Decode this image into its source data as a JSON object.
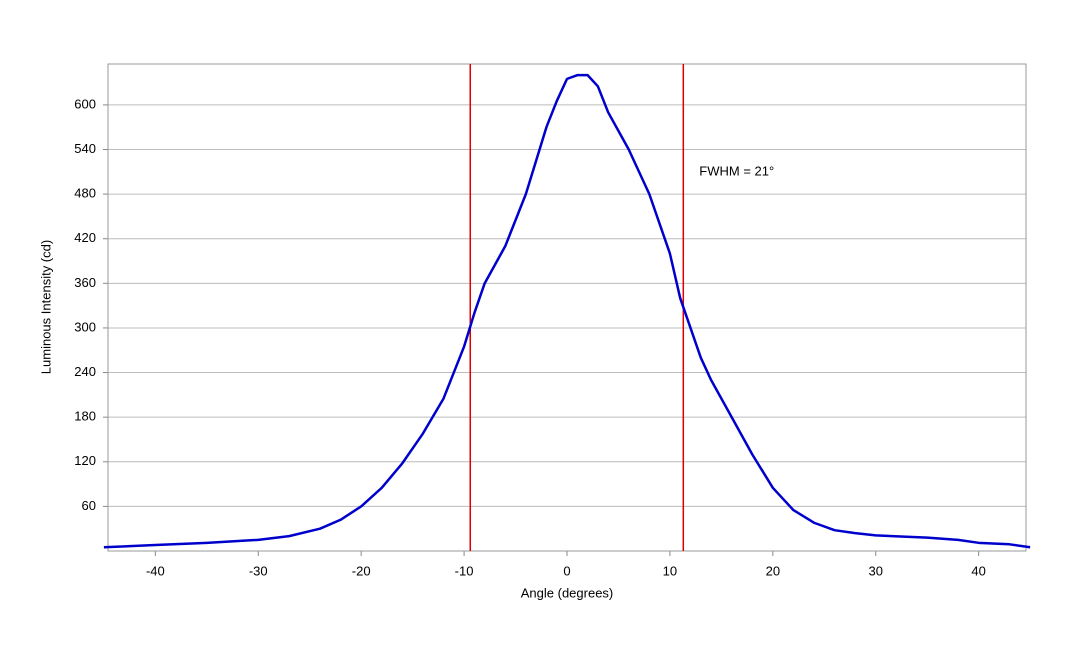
{
  "chart_data": {
    "type": "line",
    "x_label": "Angle (degrees)",
    "y_label": "Luminous Intensity (cd)",
    "annotation": "FWHM = 21°",
    "x": [
      -45,
      -40,
      -35,
      -30,
      -27,
      -24,
      -22,
      -20,
      -18,
      -16,
      -14,
      -12,
      -10,
      -9,
      -8,
      -6,
      -4,
      -2,
      -1,
      0,
      1,
      2,
      3,
      4,
      6,
      8,
      10,
      11,
      12,
      13,
      14,
      16,
      18,
      20,
      22,
      24,
      26,
      28,
      30,
      35,
      38,
      40,
      43,
      45
    ],
    "series": [
      {
        "color": "#0000cc",
        "values": [
          5,
          8,
          11,
          15,
          20,
          30,
          42,
          60,
          85,
          118,
          158,
          205,
          275,
          320,
          360,
          410,
          480,
          570,
          605,
          635,
          640,
          640,
          625,
          590,
          540,
          480,
          400,
          340,
          300,
          260,
          230,
          180,
          130,
          85,
          55,
          38,
          28,
          24,
          21,
          18,
          15,
          11,
          9,
          5
        ]
      }
    ],
    "vlines": [
      -9.4,
      11.3
    ],
    "vline_color": "#dd0000",
    "xlim": [
      -44.6,
      44.6
    ],
    "ylim": [
      0,
      655
    ],
    "xticks": [
      -40,
      -30,
      -20,
      -10,
      0,
      10,
      20,
      30,
      40
    ],
    "yticks": [
      60,
      120,
      180,
      240,
      300,
      360,
      420,
      480,
      540,
      600
    ],
    "grid": true
  }
}
